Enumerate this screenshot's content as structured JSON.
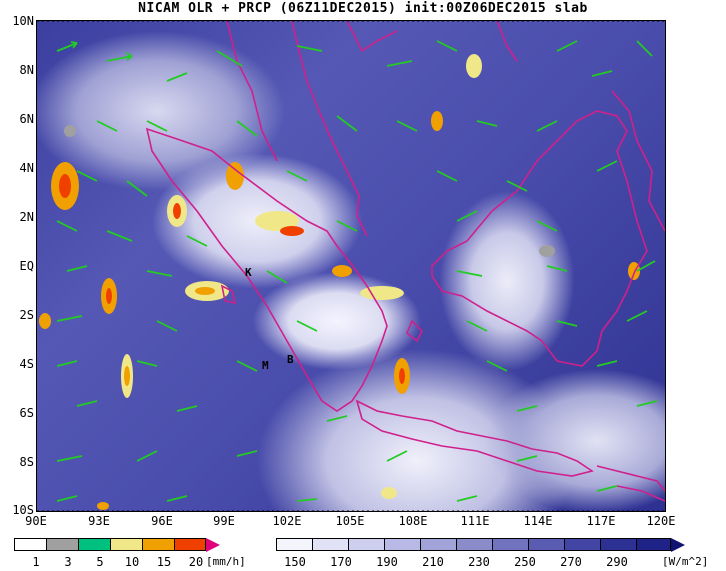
{
  "title": "NICAM OLR + PRCP (06Z11DEC2015) init:00Z06DEC2015 slab",
  "map": {
    "lat_labels": [
      "10N",
      "8N",
      "6N",
      "4N",
      "2N",
      "EQ",
      "2S",
      "4S",
      "6S",
      "8S",
      "10S"
    ],
    "lon_labels": [
      "90E",
      "93E",
      "96E",
      "99E",
      "102E",
      "105E",
      "108E",
      "111E",
      "114E",
      "117E",
      "120E"
    ],
    "markers": [
      "K",
      "M",
      "B"
    ]
  },
  "precip_scale": {
    "labels": [
      "1",
      "3",
      "5",
      "10",
      "15",
      "20"
    ],
    "unit": "[mm/h]",
    "colors": [
      "#a0a0a0",
      "#00c080",
      "#f0e888",
      "#f0a000",
      "#f04000",
      "#e0007c"
    ]
  },
  "olr_scale": {
    "labels": [
      "150",
      "170",
      "190",
      "210",
      "230",
      "250",
      "270",
      "290"
    ],
    "unit": "[W/m^2]",
    "colors": [
      "#ffffff",
      "#e8e8f8",
      "#d0d0f0",
      "#b8b8e4",
      "#a0a0d8",
      "#8484c8",
      "#6a6cbc",
      "#5456b0",
      "#3c3fa0",
      "#2a2d90",
      "#1c1f80"
    ]
  },
  "colors": {
    "coast": "#d0208c",
    "wind": "#22cc22"
  }
}
